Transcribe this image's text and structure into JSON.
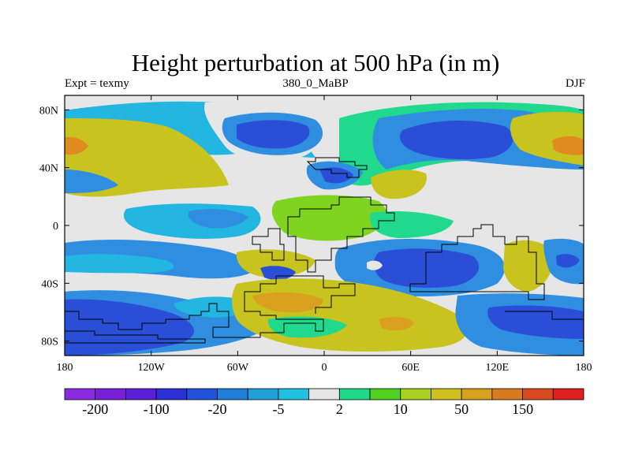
{
  "title": "Height perturbation at 500 hPa (in m)",
  "subtitle_left": "Expt = texmy",
  "subtitle_center": "380_0_MaBP",
  "subtitle_right": "DJF",
  "map": {
    "projection": "cylindrical-equidistant",
    "lon_range": [
      -180,
      180
    ],
    "lat_range": [
      -90,
      90
    ],
    "xticks": [
      {
        "value": -180,
        "label": "180"
      },
      {
        "value": -120,
        "label": "120W"
      },
      {
        "value": -60,
        "label": "60W"
      },
      {
        "value": 0,
        "label": "0"
      },
      {
        "value": 60,
        "label": "60E"
      },
      {
        "value": 120,
        "label": "120E"
      },
      {
        "value": 180,
        "label": "180"
      }
    ],
    "yticks": [
      {
        "value": 80,
        "label": "80N"
      },
      {
        "value": 40,
        "label": "40N"
      },
      {
        "value": 0,
        "label": "0"
      },
      {
        "value": -40,
        "label": "40S"
      },
      {
        "value": -80,
        "label": "80S"
      }
    ]
  },
  "colorbar": {
    "colors": [
      "#8a2be2",
      "#7a1fd9",
      "#5b1fd9",
      "#2d2fd9",
      "#1f52d9",
      "#1f7ed9",
      "#1fa0d9",
      "#1fc0e0",
      "#e6e6e6",
      "#1fd98a",
      "#4fd11f",
      "#a8d11f",
      "#d1c11f",
      "#d8a01f",
      "#d97a1f",
      "#d94a1f",
      "#e01f1f"
    ],
    "labels": [
      {
        "text": "-200",
        "index": 1
      },
      {
        "text": "-100",
        "index": 3
      },
      {
        "text": "-20",
        "index": 5
      },
      {
        "text": "-5",
        "index": 7
      },
      {
        "text": "2",
        "index": 9
      },
      {
        "text": "10",
        "index": 11
      },
      {
        "text": "50",
        "index": 13
      },
      {
        "text": "150",
        "index": 15
      }
    ]
  },
  "field_colors": {
    "neutral": "#e6e6e6",
    "strong_neg": "#2a4fd6",
    "mid_neg": "#2f8ee0",
    "weak_neg": "#23b6e0",
    "weak_pos": "#20d98c",
    "mid_pos": "#7fd41f",
    "strong_pos": "#c9c31f",
    "very_pos": "#d9a01f",
    "extreme_pos": "#e08b1f"
  }
}
